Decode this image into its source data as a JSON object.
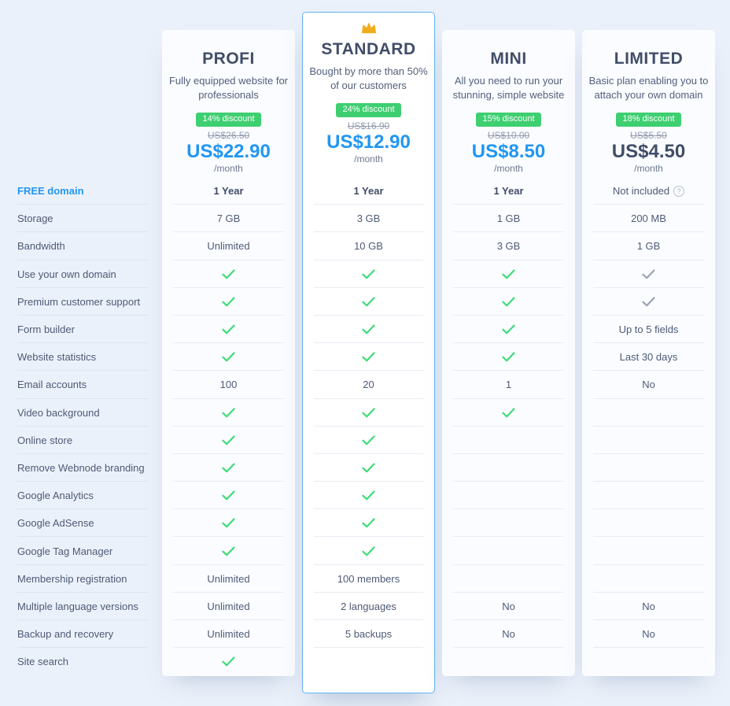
{
  "pricing_table": {
    "colors": {
      "accent_blue": "#2196f3",
      "badge_green": "#3ecf71",
      "check_green": "#3edc78",
      "check_muted": "#9aa2b5",
      "title_navy": "#414d68",
      "page_background": "#ebf1fa",
      "featured_border": "#63b2ef"
    },
    "features": [
      {
        "label": "FREE domain",
        "highlight": true
      },
      {
        "label": "Storage",
        "highlight": false
      },
      {
        "label": "Bandwidth",
        "highlight": false
      },
      {
        "label": "Use your own domain",
        "highlight": false
      },
      {
        "label": "Premium customer support",
        "highlight": false
      },
      {
        "label": "Form builder",
        "highlight": false
      },
      {
        "label": "Website statistics",
        "highlight": false
      },
      {
        "label": "Email accounts",
        "highlight": false
      },
      {
        "label": "Video background",
        "highlight": false
      },
      {
        "label": "Online store",
        "highlight": false
      },
      {
        "label": "Remove Webnode branding",
        "highlight": false
      },
      {
        "label": "Google Analytics",
        "highlight": false
      },
      {
        "label": "Google AdSense",
        "highlight": false
      },
      {
        "label": "Google Tag Manager",
        "highlight": false
      },
      {
        "label": "Membership registration",
        "highlight": false
      },
      {
        "label": "Multiple language versions",
        "highlight": false
      },
      {
        "label": "Backup and recovery",
        "highlight": false
      },
      {
        "label": "Site search",
        "highlight": false
      }
    ],
    "plans": [
      {
        "name": "PROFI",
        "description": "Fully equipped website for professionals",
        "discount_badge": "14% discount",
        "original_price": "US$26.50",
        "price": "US$22.90",
        "period": "/month",
        "featured": false,
        "crown_icon": false,
        "price_style": "blue",
        "values": [
          {
            "t": "bold",
            "v": "1 Year"
          },
          {
            "t": "text",
            "v": "7 GB"
          },
          {
            "t": "text",
            "v": "Unlimited"
          },
          {
            "t": "check"
          },
          {
            "t": "check"
          },
          {
            "t": "check"
          },
          {
            "t": "check"
          },
          {
            "t": "text",
            "v": "100"
          },
          {
            "t": "check"
          },
          {
            "t": "check"
          },
          {
            "t": "check"
          },
          {
            "t": "check"
          },
          {
            "t": "check"
          },
          {
            "t": "check"
          },
          {
            "t": "text",
            "v": "Unlimited"
          },
          {
            "t": "text",
            "v": "Unlimited"
          },
          {
            "t": "text",
            "v": "Unlimited"
          },
          {
            "t": "check"
          }
        ]
      },
      {
        "name": "STANDARD",
        "description": "Bought by more than 50% of our customers",
        "discount_badge": "24% discount",
        "original_price": "US$16.90",
        "price": "US$12.90",
        "period": "/month",
        "featured": true,
        "crown_icon": true,
        "price_style": "blue",
        "values": [
          {
            "t": "bold",
            "v": "1 Year"
          },
          {
            "t": "text",
            "v": "3 GB"
          },
          {
            "t": "text",
            "v": "10 GB"
          },
          {
            "t": "check"
          },
          {
            "t": "check"
          },
          {
            "t": "check"
          },
          {
            "t": "check"
          },
          {
            "t": "text",
            "v": "20"
          },
          {
            "t": "check"
          },
          {
            "t": "check"
          },
          {
            "t": "check"
          },
          {
            "t": "check"
          },
          {
            "t": "check"
          },
          {
            "t": "check"
          },
          {
            "t": "text",
            "v": "100 members"
          },
          {
            "t": "text",
            "v": "2 languages"
          },
          {
            "t": "text",
            "v": "5 backups"
          },
          {
            "t": "empty"
          }
        ]
      },
      {
        "name": "MINI",
        "description": "All you need to run your stunning, simple website",
        "discount_badge": "15% discount",
        "original_price": "US$10.00",
        "price": "US$8.50",
        "period": "/month",
        "featured": false,
        "crown_icon": false,
        "price_style": "blue",
        "values": [
          {
            "t": "bold",
            "v": "1 Year"
          },
          {
            "t": "text",
            "v": "1 GB"
          },
          {
            "t": "text",
            "v": "3 GB"
          },
          {
            "t": "check"
          },
          {
            "t": "check"
          },
          {
            "t": "check"
          },
          {
            "t": "check"
          },
          {
            "t": "text",
            "v": "1"
          },
          {
            "t": "check"
          },
          {
            "t": "empty"
          },
          {
            "t": "empty"
          },
          {
            "t": "empty"
          },
          {
            "t": "empty"
          },
          {
            "t": "empty"
          },
          {
            "t": "empty"
          },
          {
            "t": "text",
            "v": "No"
          },
          {
            "t": "text",
            "v": "No"
          },
          {
            "t": "empty"
          }
        ]
      },
      {
        "name": "LIMITED",
        "description": "Basic plan enabling you to attach your own domain",
        "discount_badge": "18% discount",
        "original_price": "US$5.50",
        "price": "US$4.50",
        "period": "/month",
        "featured": false,
        "crown_icon": false,
        "price_style": "dark",
        "values": [
          {
            "t": "help",
            "v": "Not included",
            "icon": "?"
          },
          {
            "t": "text",
            "v": "200 MB"
          },
          {
            "t": "text",
            "v": "1 GB"
          },
          {
            "t": "check_muted"
          },
          {
            "t": "check_muted"
          },
          {
            "t": "text",
            "v": "Up to 5 fields"
          },
          {
            "t": "text",
            "v": "Last 30 days"
          },
          {
            "t": "text",
            "v": "No"
          },
          {
            "t": "empty"
          },
          {
            "t": "empty"
          },
          {
            "t": "empty"
          },
          {
            "t": "empty"
          },
          {
            "t": "empty"
          },
          {
            "t": "empty"
          },
          {
            "t": "empty"
          },
          {
            "t": "text",
            "v": "No"
          },
          {
            "t": "text",
            "v": "No"
          },
          {
            "t": "empty"
          }
        ]
      }
    ]
  }
}
